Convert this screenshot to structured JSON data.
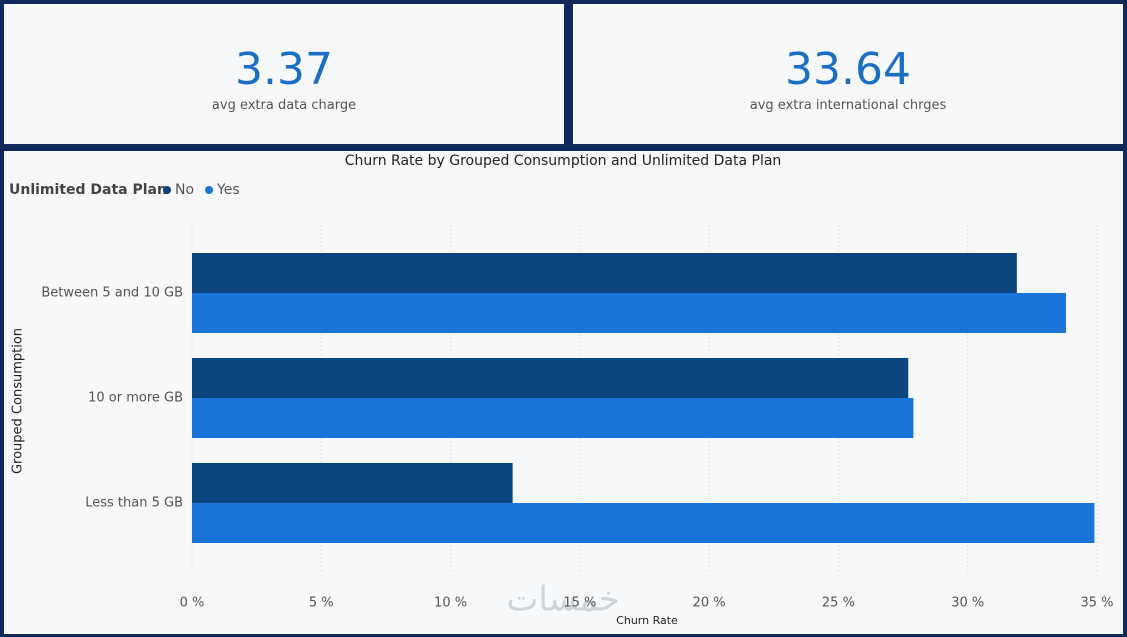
{
  "cards": [
    {
      "value": "3.37",
      "label": "avg extra data charge"
    },
    {
      "value": "33.64",
      "label": "avg extra international chrges"
    }
  ],
  "watermark": "خمسات",
  "chart_data": {
    "type": "bar",
    "orientation": "horizontal",
    "title": "Churn Rate by Grouped Consumption and Unlimited Data Plan",
    "legend_title": "Unlimited Data Plan",
    "x_label": "Churn Rate",
    "y_label": "Grouped Consumption",
    "categories": [
      "Between 5 and 10 GB",
      "10 or more GB",
      "Less than 5 GB"
    ],
    "series": [
      {
        "name": "No",
        "color": "#0b4580",
        "values": [
          31.9,
          27.7,
          12.4
        ]
      },
      {
        "name": "Yes",
        "color": "#1a73d6",
        "values": [
          33.8,
          27.9,
          34.9
        ]
      }
    ],
    "xlim": [
      0,
      35
    ],
    "xticks": [
      {
        "value": 0,
        "label": "0 %"
      },
      {
        "value": 5,
        "label": "5 %"
      },
      {
        "value": 10,
        "label": "10 %"
      },
      {
        "value": 15,
        "label": "15 %"
      },
      {
        "value": 20,
        "label": "20 %"
      },
      {
        "value": 25,
        "label": "25 %"
      },
      {
        "value": 30,
        "label": "30 %"
      },
      {
        "value": 35,
        "label": "35 %"
      }
    ],
    "grid": true
  }
}
